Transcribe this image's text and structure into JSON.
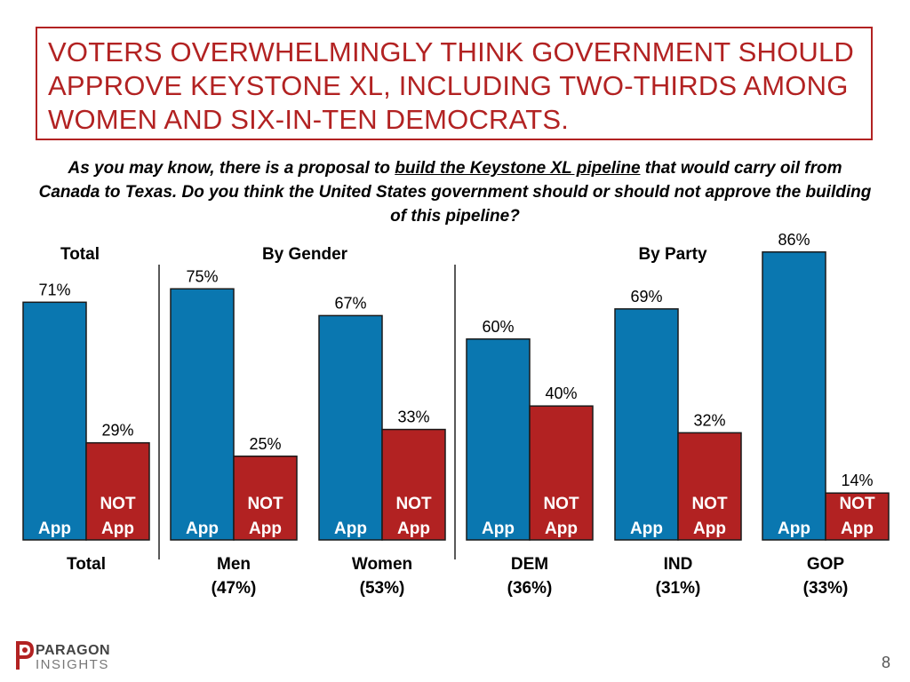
{
  "title": "VOTERS OVERWHELMINGLY THINK GOVERNMENT SHOULD APPROVE KEYSTONE XL, INCLUDING TWO-THIRDS AMONG WOMEN AND SIX-IN-TEN DEMOCRATS.",
  "question": {
    "before": "As you may know, there is a proposal to ",
    "underlined": "build the Keystone XL pipeline",
    "after": " that would carry oil from Canada to Texas. Do you think the United States government should or should not approve the building of this pipeline?"
  },
  "logo": {
    "word1": "PARAGON",
    "word2": "INSIGHTS"
  },
  "page_number": "8",
  "colors": {
    "approve": "#0a77b0",
    "not_approve": "#b22222",
    "title": "#b22222"
  },
  "chart_data": {
    "type": "bar",
    "group_headers": [
      "Total",
      "By Gender",
      "By Party"
    ],
    "categories": [
      "Total",
      "Men",
      "Women",
      "DEM",
      "IND",
      "GOP"
    ],
    "category_sublabels": [
      "",
      "(47%)",
      "(53%)",
      "(36%)",
      "(31%)",
      "(33%)"
    ],
    "series": [
      {
        "name": "App",
        "inner_label": [
          "App"
        ],
        "values": [
          71,
          75,
          67,
          60,
          69,
          86
        ],
        "color": "#0a77b0"
      },
      {
        "name": "NOT App",
        "inner_label": [
          "NOT",
          "App"
        ],
        "values": [
          29,
          25,
          33,
          40,
          32,
          14
        ],
        "color": "#b22222"
      }
    ],
    "value_suffix": "%",
    "ylim": [
      0,
      100
    ]
  }
}
